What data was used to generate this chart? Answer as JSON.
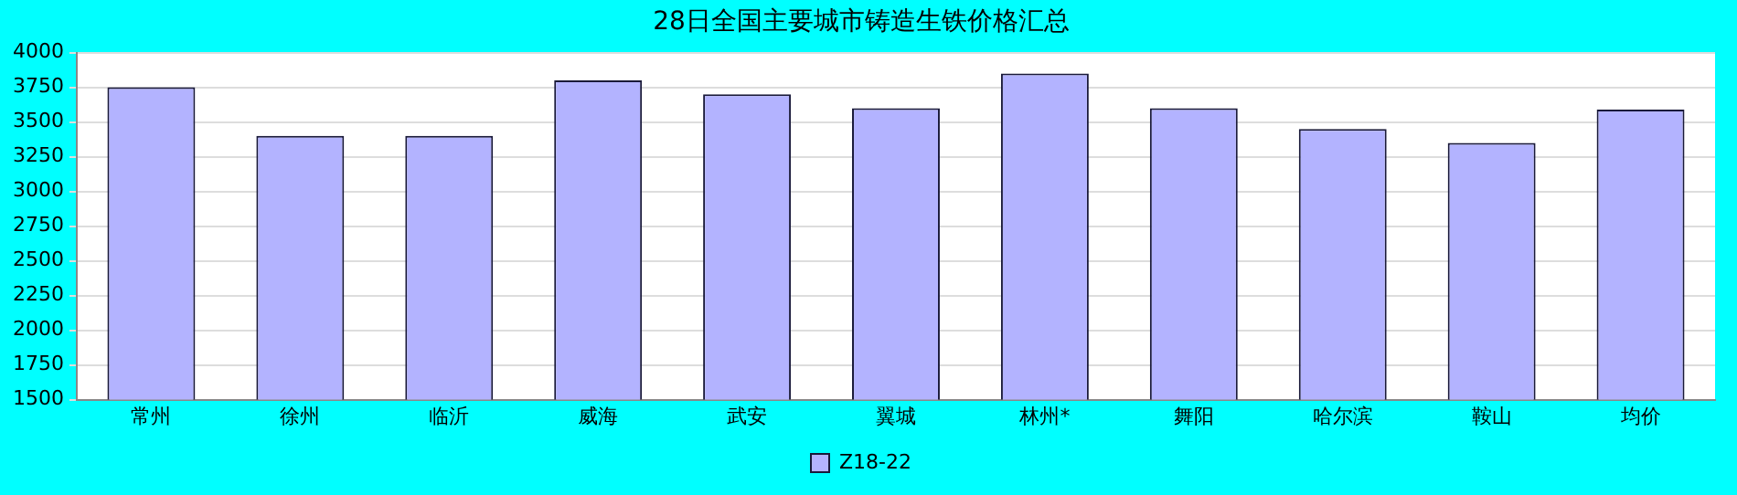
{
  "chart_data": {
    "type": "bar",
    "title": "28日全国主要城市铸造生铁价格汇总",
    "categories": [
      "常州",
      "徐州",
      "临沂",
      "威海",
      "武安",
      "翼城",
      "林州*",
      "舞阳",
      "哈尔滨",
      "鞍山",
      "均价"
    ],
    "series": [
      {
        "name": "Z18-22",
        "color": "#b3b3ff",
        "values": [
          3750,
          3400,
          3400,
          3800,
          3700,
          3600,
          3850,
          3600,
          3450,
          3350,
          3590
        ]
      }
    ],
    "ylim": [
      1500,
      4000
    ],
    "yticks": [
      1500,
      1750,
      2000,
      2250,
      2500,
      2750,
      3000,
      3250,
      3500,
      3750,
      4000
    ],
    "grid": "y",
    "legend": "bottom"
  }
}
